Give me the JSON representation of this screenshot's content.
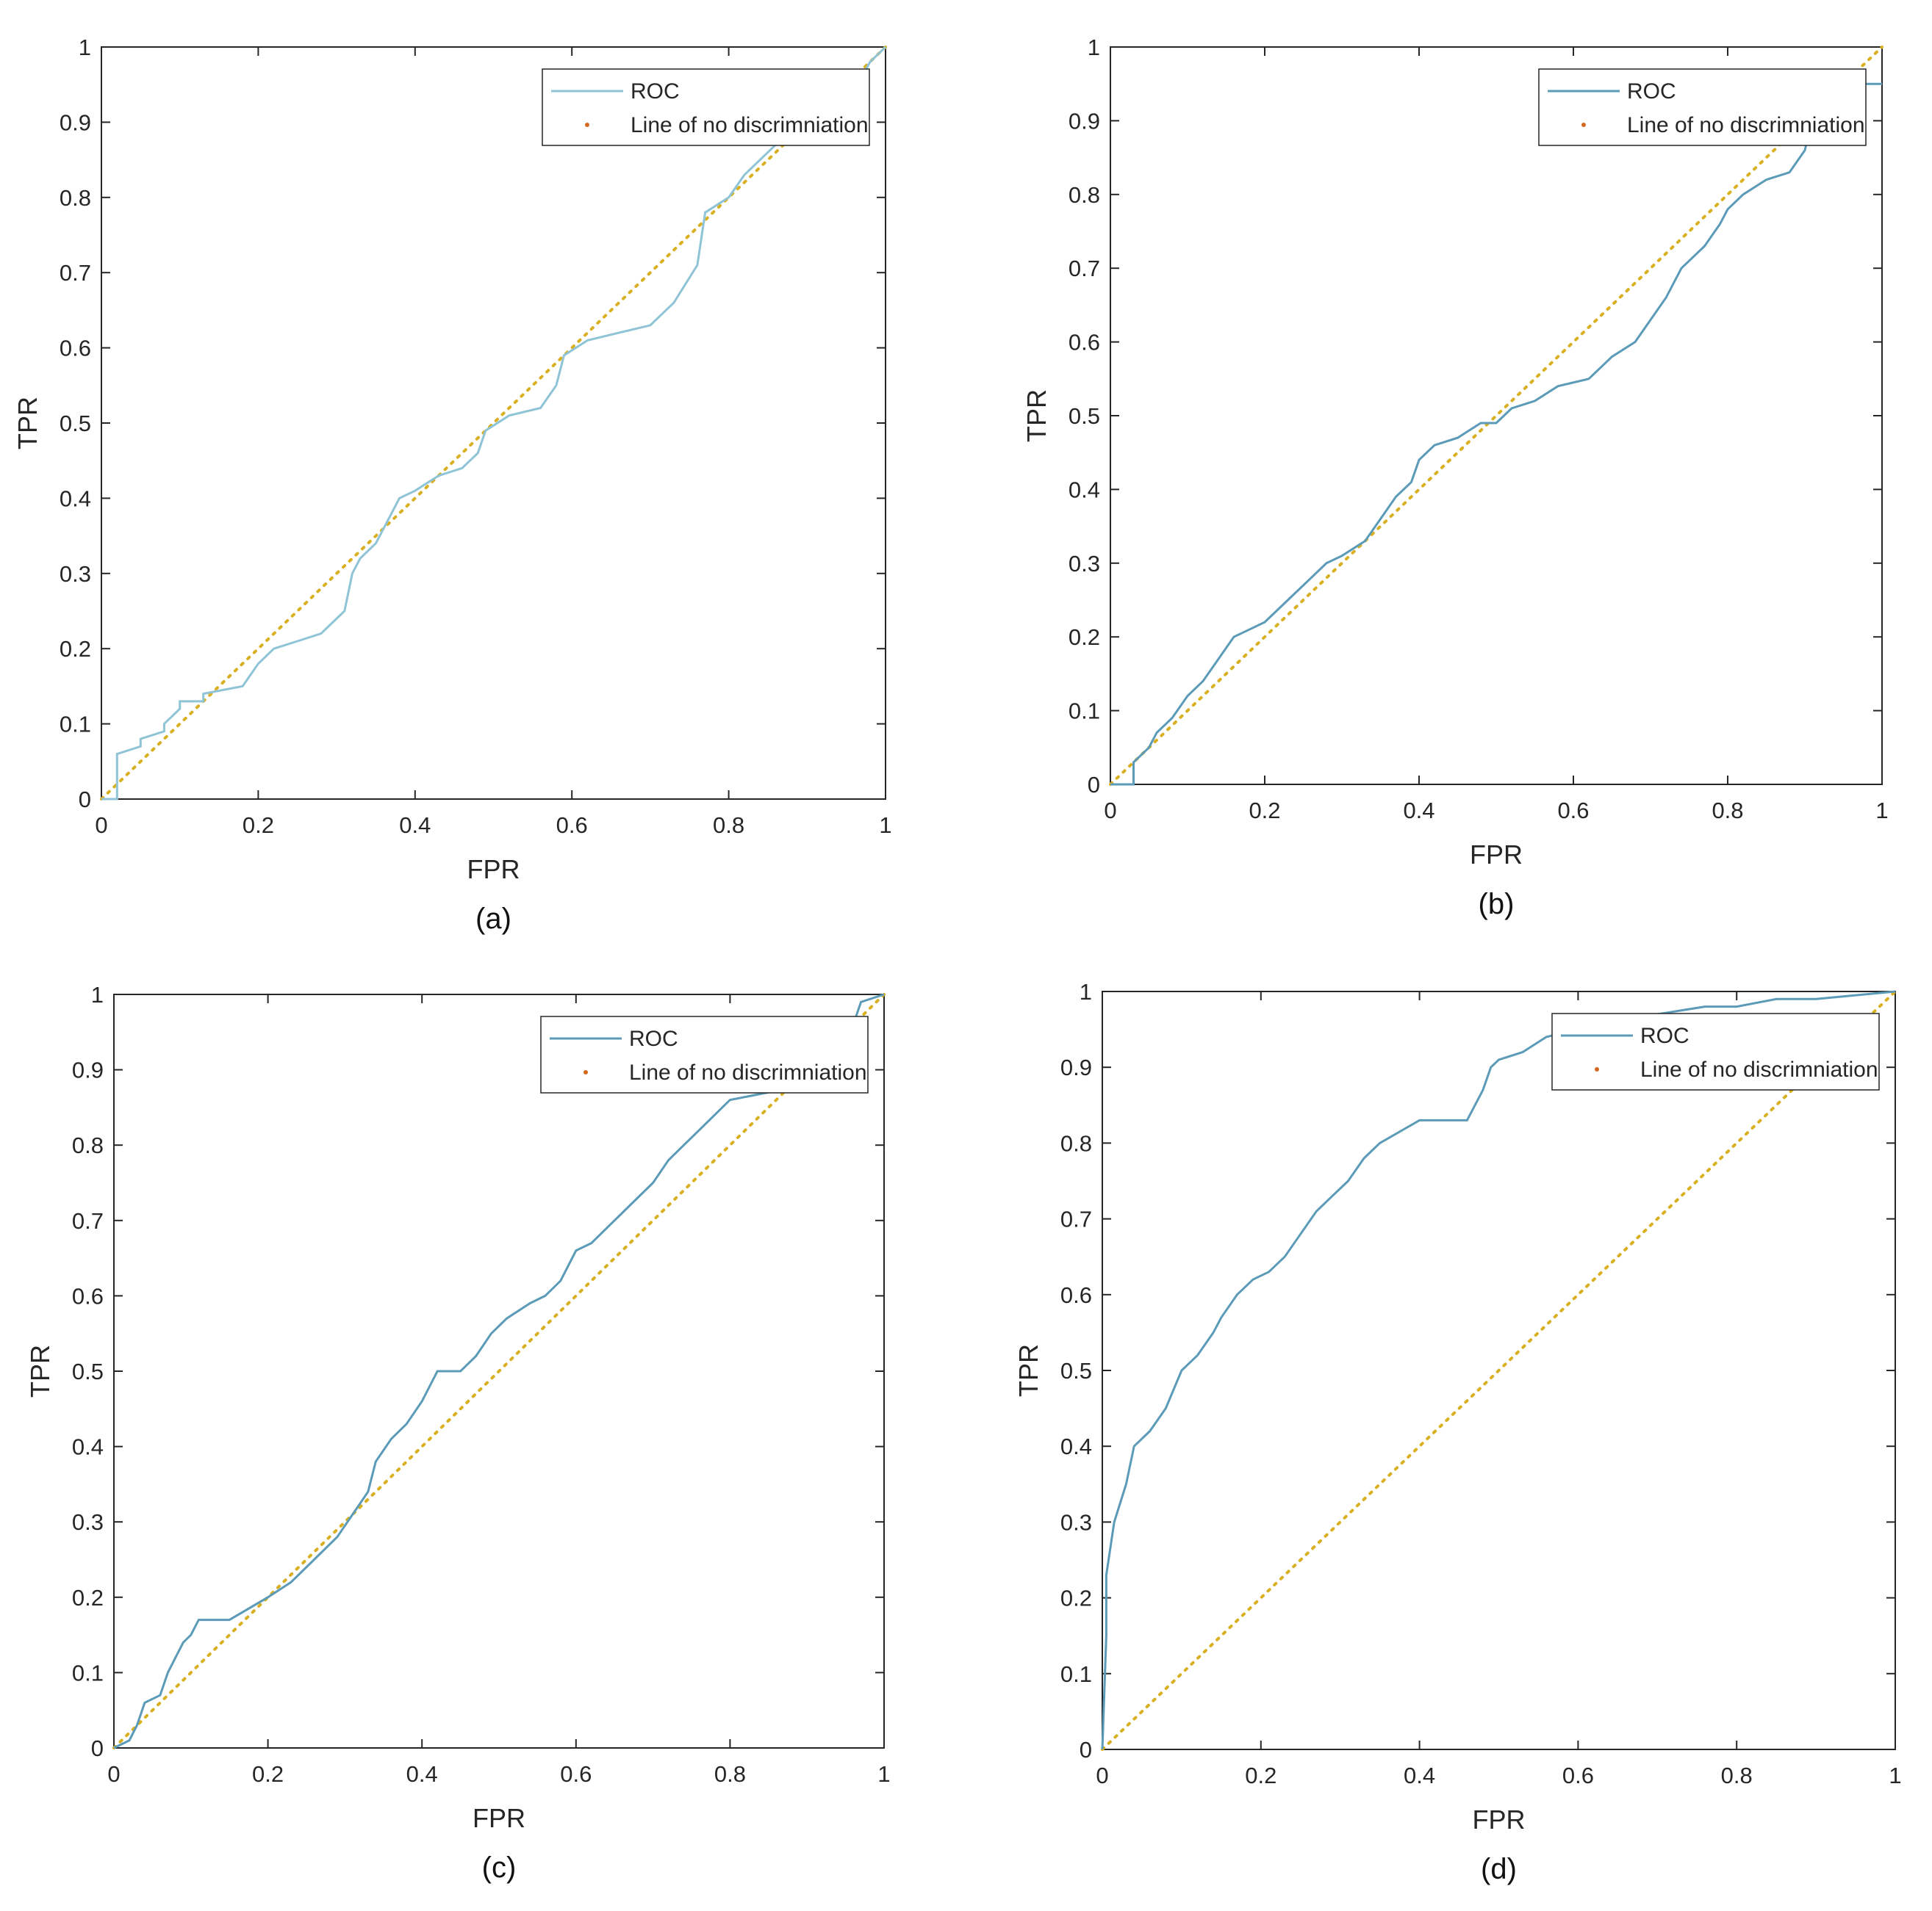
{
  "colors": {
    "roc_a": "#8fc4d6",
    "roc": "#5b9bb8",
    "diag": "#d9b021",
    "diag_marker": "#d2691e",
    "axis": "#262626",
    "background": "#ffffff"
  },
  "chart_data": [
    {
      "type": "line",
      "caption": "(a)",
      "xlabel": "FPR",
      "ylabel": "TPR",
      "xlim": [
        0,
        1
      ],
      "ylim": [
        0,
        1
      ],
      "xticks": [
        0,
        0.2,
        0.4,
        0.6,
        0.8,
        1
      ],
      "xtick_labels": [
        "0",
        "0.2",
        "0.4",
        "0.6",
        "0.8",
        "1"
      ],
      "yticks": [
        0,
        0.1,
        0.2,
        0.3,
        0.4,
        0.5,
        0.6,
        0.7,
        0.8,
        0.9,
        1
      ],
      "ytick_labels": [
        "0",
        "0.1",
        "0.2",
        "0.3",
        "0.4",
        "0.5",
        "0.6",
        "0.7",
        "0.8",
        "0.9",
        "1"
      ],
      "legend": {
        "entries": [
          "ROC",
          "Line of no discrimniation"
        ],
        "location": "top-right"
      },
      "series": [
        {
          "name": "ROC",
          "color": "roc_a",
          "style": "solid",
          "x": [
            0,
            0.02,
            0.02,
            0.05,
            0.05,
            0.08,
            0.08,
            0.1,
            0.1,
            0.13,
            0.13,
            0.18,
            0.2,
            0.22,
            0.25,
            0.28,
            0.31,
            0.32,
            0.33,
            0.35,
            0.37,
            0.38,
            0.4,
            0.43,
            0.46,
            0.48,
            0.49,
            0.52,
            0.56,
            0.58,
            0.59,
            0.62,
            0.66,
            0.7,
            0.73,
            0.76,
            0.77,
            0.8,
            0.82,
            0.84,
            0.86,
            0.95,
            0.97,
            0.98,
            1
          ],
          "y": [
            0,
            0,
            0.06,
            0.07,
            0.08,
            0.09,
            0.1,
            0.12,
            0.13,
            0.13,
            0.14,
            0.15,
            0.18,
            0.2,
            0.21,
            0.22,
            0.25,
            0.3,
            0.32,
            0.34,
            0.38,
            0.4,
            0.41,
            0.43,
            0.44,
            0.46,
            0.49,
            0.51,
            0.52,
            0.55,
            0.59,
            0.61,
            0.62,
            0.63,
            0.66,
            0.71,
            0.78,
            0.8,
            0.83,
            0.85,
            0.87,
            0.93,
            0.96,
            0.98,
            1
          ]
        },
        {
          "name": "Line of no discrimniation",
          "color": "diag",
          "style": "dotted",
          "x": [
            0,
            1
          ],
          "y": [
            0,
            1
          ]
        }
      ]
    },
    {
      "type": "line",
      "caption": "(b)",
      "xlabel": "FPR",
      "ylabel": "TPR",
      "xlim": [
        0,
        1
      ],
      "ylim": [
        0,
        1
      ],
      "xticks": [
        0,
        0.2,
        0.4,
        0.6,
        0.8,
        1
      ],
      "xtick_labels": [
        "0",
        "0.2",
        "0.4",
        "0.6",
        "0.8",
        "1"
      ],
      "yticks": [
        0,
        0.1,
        0.2,
        0.3,
        0.4,
        0.5,
        0.6,
        0.7,
        0.8,
        0.9,
        1
      ],
      "ytick_labels": [
        "0",
        "0.1",
        "0.2",
        "0.3",
        "0.4",
        "0.5",
        "0.6",
        "0.7",
        "0.8",
        "0.9",
        "1"
      ],
      "legend": {
        "entries": [
          "ROC",
          "Line of no discrimniation"
        ],
        "location": "top-right"
      },
      "series": [
        {
          "name": "ROC",
          "color": "roc",
          "style": "solid",
          "x": [
            0,
            0.03,
            0.03,
            0.05,
            0.06,
            0.08,
            0.1,
            0.12,
            0.14,
            0.16,
            0.18,
            0.2,
            0.23,
            0.26,
            0.28,
            0.3,
            0.33,
            0.35,
            0.37,
            0.39,
            0.4,
            0.42,
            0.45,
            0.48,
            0.5,
            0.52,
            0.55,
            0.58,
            0.62,
            0.65,
            0.68,
            0.7,
            0.72,
            0.74,
            0.75,
            0.77,
            0.79,
            0.8,
            0.82,
            0.85,
            0.88,
            0.9,
            0.92,
            1
          ],
          "y": [
            0,
            0,
            0.03,
            0.05,
            0.07,
            0.09,
            0.12,
            0.14,
            0.17,
            0.2,
            0.21,
            0.22,
            0.25,
            0.28,
            0.3,
            0.31,
            0.33,
            0.36,
            0.39,
            0.41,
            0.44,
            0.46,
            0.47,
            0.49,
            0.49,
            0.51,
            0.52,
            0.54,
            0.55,
            0.58,
            0.6,
            0.63,
            0.66,
            0.7,
            0.71,
            0.73,
            0.76,
            0.78,
            0.8,
            0.82,
            0.83,
            0.86,
            0.95,
            0.95
          ]
        },
        {
          "name": "Line of no discrimniation",
          "color": "diag",
          "style": "dotted",
          "x": [
            0,
            1
          ],
          "y": [
            0,
            1
          ]
        }
      ]
    },
    {
      "type": "line",
      "caption": "(c)",
      "xlabel": "FPR",
      "ylabel": "TPR",
      "xlim": [
        0,
        1
      ],
      "ylim": [
        0,
        1
      ],
      "xticks": [
        0,
        0.2,
        0.4,
        0.6,
        0.8,
        1
      ],
      "xtick_labels": [
        "0",
        "0.2",
        "0.4",
        "0.6",
        "0.8",
        "1"
      ],
      "yticks": [
        0,
        0.1,
        0.2,
        0.3,
        0.4,
        0.5,
        0.6,
        0.7,
        0.8,
        0.9,
        1
      ],
      "ytick_labels": [
        "0",
        "0.1",
        "0.2",
        "0.3",
        "0.4",
        "0.5",
        "0.6",
        "0.7",
        "0.8",
        "0.9",
        "1"
      ],
      "legend": {
        "entries": [
          "ROC",
          "Line of no discrimniation"
        ],
        "location": "top-right"
      },
      "series": [
        {
          "name": "ROC",
          "color": "roc",
          "style": "solid",
          "x": [
            0,
            0.02,
            0.03,
            0.04,
            0.06,
            0.07,
            0.08,
            0.09,
            0.1,
            0.11,
            0.15,
            0.2,
            0.23,
            0.26,
            0.29,
            0.31,
            0.33,
            0.34,
            0.36,
            0.38,
            0.4,
            0.42,
            0.45,
            0.47,
            0.49,
            0.51,
            0.54,
            0.56,
            0.58,
            0.6,
            0.62,
            0.64,
            0.66,
            0.68,
            0.7,
            0.72,
            0.74,
            0.76,
            0.78,
            0.8,
            0.85,
            0.88,
            0.92,
            0.96,
            0.97,
            1
          ],
          "y": [
            0,
            0.01,
            0.03,
            0.06,
            0.07,
            0.1,
            0.12,
            0.14,
            0.15,
            0.17,
            0.17,
            0.2,
            0.22,
            0.25,
            0.28,
            0.31,
            0.34,
            0.38,
            0.41,
            0.43,
            0.46,
            0.5,
            0.5,
            0.52,
            0.55,
            0.57,
            0.59,
            0.6,
            0.62,
            0.66,
            0.67,
            0.69,
            0.71,
            0.73,
            0.75,
            0.78,
            0.8,
            0.82,
            0.84,
            0.86,
            0.87,
            0.9,
            0.93,
            0.96,
            0.99,
            1
          ]
        },
        {
          "name": "Line of no discrimniation",
          "color": "diag",
          "style": "dotted",
          "x": [
            0,
            1
          ],
          "y": [
            0,
            1
          ]
        }
      ]
    },
    {
      "type": "line",
      "caption": "(d)",
      "xlabel": "FPR",
      "ylabel": "TPR",
      "xlim": [
        0,
        1
      ],
      "ylim": [
        0,
        1
      ],
      "xticks": [
        0,
        0.2,
        0.4,
        0.6,
        0.8,
        1
      ],
      "xtick_labels": [
        "0",
        "0.2",
        "0.4",
        "0.6",
        "0.8",
        "1"
      ],
      "yticks": [
        0,
        0.1,
        0.2,
        0.3,
        0.4,
        0.5,
        0.6,
        0.7,
        0.8,
        0.9,
        1
      ],
      "ytick_labels": [
        "0",
        "0.1",
        "0.2",
        "0.3",
        "0.4",
        "0.5",
        "0.6",
        "0.7",
        "0.8",
        "0.9",
        "1"
      ],
      "legend": {
        "entries": [
          "ROC",
          "Line of no discrimniation"
        ],
        "location": "top-right"
      },
      "series": [
        {
          "name": "ROC",
          "color": "roc",
          "style": "solid",
          "x": [
            0,
            0.005,
            0.005,
            0.015,
            0.03,
            0.04,
            0.06,
            0.08,
            0.1,
            0.12,
            0.14,
            0.15,
            0.17,
            0.19,
            0.21,
            0.23,
            0.25,
            0.27,
            0.29,
            0.31,
            0.33,
            0.35,
            0.4,
            0.46,
            0.47,
            0.48,
            0.49,
            0.5,
            0.53,
            0.56,
            0.6,
            0.64,
            0.7,
            0.76,
            0.8,
            0.85,
            0.9,
            1
          ],
          "y": [
            0,
            0.15,
            0.23,
            0.3,
            0.35,
            0.4,
            0.42,
            0.45,
            0.5,
            0.52,
            0.55,
            0.57,
            0.6,
            0.62,
            0.63,
            0.65,
            0.68,
            0.71,
            0.73,
            0.75,
            0.78,
            0.8,
            0.83,
            0.83,
            0.85,
            0.87,
            0.9,
            0.91,
            0.92,
            0.94,
            0.95,
            0.96,
            0.97,
            0.98,
            0.98,
            0.99,
            0.99,
            1
          ]
        },
        {
          "name": "Line of no discrimniation",
          "color": "diag",
          "style": "dotted",
          "x": [
            0,
            1
          ],
          "y": [
            0,
            1
          ]
        }
      ]
    }
  ]
}
